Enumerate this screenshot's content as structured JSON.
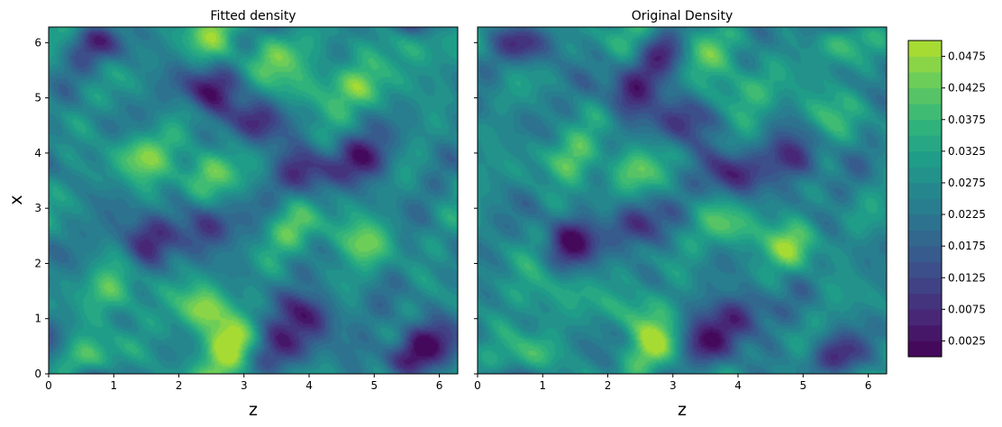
{
  "chart_data": [
    {
      "type": "heatmap",
      "title": "Fitted density",
      "xlabel": "z",
      "ylabel": "x",
      "xlim": [
        0,
        6.2832
      ],
      "ylim": [
        0,
        6.2832
      ],
      "xticks": [
        0,
        1,
        2,
        3,
        4,
        5,
        6
      ],
      "yticks": [
        0,
        1,
        2,
        3,
        4,
        5,
        6
      ],
      "colormap": "viridis",
      "grid": false,
      "features": [
        {
          "z": 0.75,
          "x": 6.05,
          "v": 0.006
        },
        {
          "z": 2.45,
          "x": 6.08,
          "v": 0.04
        },
        {
          "z": 3.45,
          "x": 5.75,
          "v": 0.043
        },
        {
          "z": 5.5,
          "x": 6.0,
          "v": 0.041
        },
        {
          "z": 2.45,
          "x": 5.15,
          "v": 0.004
        },
        {
          "z": 4.1,
          "x": 5.2,
          "v": 0.04
        },
        {
          "z": 4.8,
          "x": 5.2,
          "v": 0.041
        },
        {
          "z": 1.45,
          "x": 3.95,
          "v": 0.044
        },
        {
          "z": 2.4,
          "x": 3.62,
          "v": 0.046
        },
        {
          "z": 3.9,
          "x": 3.65,
          "v": 0.006
        },
        {
          "z": 4.85,
          "x": 3.9,
          "v": 0.004
        },
        {
          "z": 2.4,
          "x": 2.7,
          "v": 0.006
        },
        {
          "z": 1.45,
          "x": 2.4,
          "v": 0.006
        },
        {
          "z": 4.8,
          "x": 2.4,
          "v": 0.043
        },
        {
          "z": 3.8,
          "x": 2.65,
          "v": 0.04
        },
        {
          "z": 1.05,
          "x": 1.5,
          "v": 0.043
        },
        {
          "z": 2.45,
          "x": 1.15,
          "v": 0.047
        },
        {
          "z": 4.0,
          "x": 1.1,
          "v": 0.005
        },
        {
          "z": 0.7,
          "x": 0.25,
          "v": 0.044
        },
        {
          "z": 2.75,
          "x": 0.52,
          "v": 0.05
        },
        {
          "z": 3.55,
          "x": 0.5,
          "v": 0.006
        },
        {
          "z": 5.5,
          "x": 0.25,
          "v": 0.006
        },
        {
          "z": 5.85,
          "x": 0.6,
          "v": 0.008
        },
        {
          "z": 3.2,
          "x": 4.6,
          "v": 0.008
        }
      ]
    },
    {
      "type": "heatmap",
      "title": "Original Density",
      "xlabel": "z",
      "ylabel": "",
      "xlim": [
        0,
        6.2832
      ],
      "ylim": [
        0,
        6.2832
      ],
      "xticks": [
        0,
        1,
        2,
        3,
        4,
        5,
        6
      ],
      "yticks": [
        0,
        1,
        2,
        3,
        4,
        5,
        6
      ],
      "colormap": "viridis",
      "grid": false,
      "features": [
        {
          "z": 0.75,
          "x": 6.05,
          "v": 0.006
        },
        {
          "z": 2.45,
          "x": 6.05,
          "v": 0.036
        },
        {
          "z": 3.45,
          "x": 5.75,
          "v": 0.042
        },
        {
          "z": 5.5,
          "x": 6.05,
          "v": 0.042
        },
        {
          "z": 2.85,
          "x": 5.75,
          "v": 0.005
        },
        {
          "z": 2.4,
          "x": 5.15,
          "v": 0.006
        },
        {
          "z": 4.0,
          "x": 5.15,
          "v": 0.04
        },
        {
          "z": 5.3,
          "x": 4.75,
          "v": 0.038
        },
        {
          "z": 1.45,
          "x": 3.9,
          "v": 0.041
        },
        {
          "z": 2.35,
          "x": 3.65,
          "v": 0.04
        },
        {
          "z": 3.9,
          "x": 3.6,
          "v": 0.006
        },
        {
          "z": 4.85,
          "x": 3.9,
          "v": 0.005
        },
        {
          "z": 1.45,
          "x": 2.4,
          "v": 0.004
        },
        {
          "z": 2.4,
          "x": 2.7,
          "v": 0.008
        },
        {
          "z": 3.9,
          "x": 2.65,
          "v": 0.041
        },
        {
          "z": 4.8,
          "x": 2.35,
          "v": 0.043
        },
        {
          "z": 1.0,
          "x": 1.5,
          "v": 0.038
        },
        {
          "z": 2.45,
          "x": 1.15,
          "v": 0.04
        },
        {
          "z": 4.0,
          "x": 1.1,
          "v": 0.006
        },
        {
          "z": 0.75,
          "x": 0.25,
          "v": 0.043
        },
        {
          "z": 2.8,
          "x": 0.5,
          "v": 0.045
        },
        {
          "z": 3.5,
          "x": 0.55,
          "v": 0.004
        },
        {
          "z": 5.5,
          "x": 0.25,
          "v": 0.005
        },
        {
          "z": 3.2,
          "x": 4.6,
          "v": 0.008
        }
      ]
    }
  ],
  "colorbar": {
    "min": 0.0,
    "max": 0.05,
    "levels": 20,
    "ticks": [
      "0.0025",
      "0.0075",
      "0.0125",
      "0.0175",
      "0.0225",
      "0.0275",
      "0.0325",
      "0.0375",
      "0.0425",
      "0.0475"
    ]
  }
}
